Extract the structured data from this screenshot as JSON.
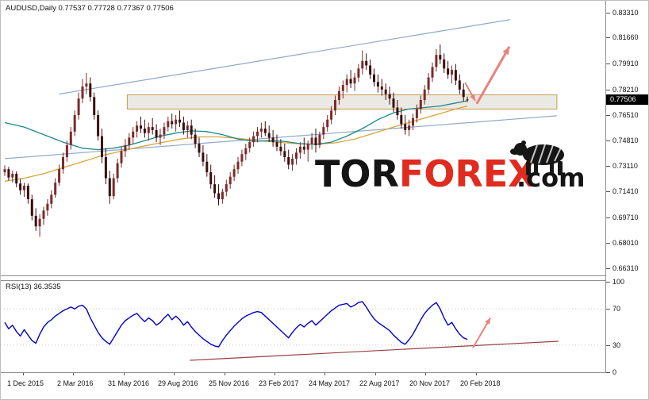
{
  "header": {
    "symbol_info": "AUDUSD,Daily  0.77537 0.77728 0.77367 0.77506"
  },
  "watermark": {
    "part1": "TOR",
    "part2": "FOREX",
    "part3": ".com",
    "color1": "#141414",
    "color2": "#e02b1f",
    "bear_color": "#161616"
  },
  "price_axis": {
    "labels": [
      "0.83310",
      "0.81660",
      "0.79910",
      "0.78210",
      "0.76510",
      "0.74810",
      "0.73110",
      "0.71410",
      "0.69710",
      "0.68010",
      "0.66310"
    ],
    "current_price": "0.77506"
  },
  "date_axis": {
    "labels": [
      "1 Dec 2015",
      "2 Mar 2016",
      "31 May 2016",
      "29 Aug 2016",
      "25 Nov 2016",
      "23 Feb 2017",
      "24 May 2017",
      "22 Aug 2017",
      "20 Nov 2017",
      "20 Feb 2018"
    ]
  },
  "rsi": {
    "label": "RSI(13) 36.3535",
    "axis_labels": [
      "100",
      "70",
      "30",
      "0"
    ],
    "levels": [
      70,
      30
    ],
    "level_color": "#c9c9c9",
    "line_color": "#0000cc",
    "trend_color": "#9a4040",
    "trendline": {
      "from": [
        47.6,
        13.2
      ],
      "to": [
        142.4,
        34.2
      ]
    },
    "arrow": {
      "from": [
        120.4,
        27
      ],
      "to": [
        124.9,
        60
      ]
    },
    "values": [
      55,
      48,
      52,
      45,
      40,
      47,
      41,
      35,
      32,
      42,
      50,
      55,
      58,
      62,
      65,
      68,
      70,
      72,
      70,
      73,
      74,
      70,
      60,
      52,
      44,
      38,
      34,
      31,
      38,
      45,
      52,
      57,
      60,
      63,
      65,
      60,
      56,
      60,
      57,
      52,
      55,
      60,
      64,
      58,
      62,
      58,
      52,
      56,
      50,
      45,
      41,
      37,
      34,
      31,
      29,
      28,
      35,
      41,
      46,
      51,
      55,
      59,
      62,
      64,
      66,
      67,
      66,
      62,
      58,
      54,
      50,
      46,
      42,
      38,
      44,
      49,
      53,
      50,
      54,
      57,
      52,
      56,
      60,
      64,
      68,
      71,
      74,
      75,
      76,
      72,
      74,
      77,
      78,
      72,
      65,
      59,
      55,
      52,
      49,
      46,
      41,
      37,
      33,
      31,
      36,
      42,
      50,
      58,
      65,
      70,
      74,
      77,
      70,
      60,
      52,
      55,
      48,
      42,
      38,
      36.35
    ]
  },
  "chart_data": {
    "type": "candlestick",
    "symbol": "AUDUSD",
    "timeframe": "Daily",
    "ohlc": {
      "open": "0.77537",
      "high": "0.77728",
      "low": "0.77367",
      "close": "0.77506"
    },
    "y_axis": {
      "min": 0.6631,
      "max": 0.8331
    },
    "candle_up_color": "#7d2a2a",
    "candle_down_color": "#3c0d0d",
    "arrow_color": "#e8837a",
    "channel_lines": {
      "color": "#8fa8c8",
      "upper": [
        [
          14,
          0.779
        ],
        [
          130,
          0.8285
        ]
      ],
      "lower": [
        [
          0,
          0.736
        ],
        [
          142,
          0.7645
        ]
      ]
    },
    "zone": {
      "from_idx": 31.5,
      "to_idx": 142,
      "price_top": 0.7785,
      "price_bottom": 0.769,
      "fill": "#eae9e3",
      "border": "#c99a4e"
    },
    "ma_teal": {
      "color": "#1b8a8a",
      "points": [
        [
          0,
          0.76
        ],
        [
          5,
          0.757
        ],
        [
          10,
          0.752
        ],
        [
          15,
          0.747
        ],
        [
          20,
          0.743
        ],
        [
          24,
          0.742
        ],
        [
          28,
          0.743
        ],
        [
          32,
          0.745
        ],
        [
          36,
          0.748
        ],
        [
          40,
          0.751
        ],
        [
          44,
          0.753
        ],
        [
          48,
          0.7545
        ],
        [
          52,
          0.754
        ],
        [
          56,
          0.752
        ],
        [
          60,
          0.749
        ],
        [
          64,
          0.7475
        ],
        [
          68,
          0.748
        ],
        [
          72,
          0.7475
        ],
        [
          76,
          0.746
        ],
        [
          80,
          0.7455
        ],
        [
          84,
          0.747
        ],
        [
          88,
          0.751
        ],
        [
          92,
          0.756
        ],
        [
          96,
          0.762
        ],
        [
          100,
          0.7665
        ],
        [
          104,
          0.769
        ],
        [
          108,
          0.77
        ],
        [
          112,
          0.771
        ],
        [
          116,
          0.773
        ],
        [
          119,
          0.7745
        ]
      ]
    },
    "ma_orange": {
      "color": "#d8a33c",
      "points": [
        [
          0,
          0.721
        ],
        [
          5,
          0.723
        ],
        [
          10,
          0.726
        ],
        [
          15,
          0.73
        ],
        [
          20,
          0.734
        ],
        [
          25,
          0.738
        ],
        [
          30,
          0.741
        ],
        [
          35,
          0.744
        ],
        [
          40,
          0.7465
        ],
        [
          45,
          0.749
        ],
        [
          50,
          0.7505
        ],
        [
          55,
          0.7505
        ],
        [
          60,
          0.7495
        ],
        [
          65,
          0.748
        ],
        [
          70,
          0.747
        ],
        [
          75,
          0.746
        ],
        [
          80,
          0.7455
        ],
        [
          85,
          0.7465
        ],
        [
          90,
          0.749
        ],
        [
          95,
          0.753
        ],
        [
          100,
          0.757
        ],
        [
          104,
          0.76
        ],
        [
          108,
          0.763
        ],
        [
          112,
          0.766
        ],
        [
          116,
          0.769
        ],
        [
          119,
          0.771
        ]
      ]
    },
    "arrows": {
      "down": {
        "from": [
          118.4,
          0.7866
        ],
        "to": [
          121,
          0.7745
        ]
      },
      "up": {
        "from": [
          121.4,
          0.7725
        ],
        "to": [
          129.8,
          0.8105
        ]
      }
    },
    "candles": [
      [
        0.727,
        0.7315,
        0.7245,
        0.729
      ],
      [
        0.729,
        0.7305,
        0.7215,
        0.7235
      ],
      [
        0.7235,
        0.728,
        0.72,
        0.726
      ],
      [
        0.726,
        0.7275,
        0.717,
        0.7195
      ],
      [
        0.7195,
        0.7225,
        0.712,
        0.715
      ],
      [
        0.715,
        0.72,
        0.7105,
        0.718
      ],
      [
        0.718,
        0.7195,
        0.706,
        0.709
      ],
      [
        0.709,
        0.712,
        0.695,
        0.698
      ],
      [
        0.698,
        0.703,
        0.688,
        0.691
      ],
      [
        0.691,
        0.699,
        0.684,
        0.696
      ],
      [
        0.696,
        0.704,
        0.692,
        0.7015
      ],
      [
        0.7015,
        0.709,
        0.698,
        0.706
      ],
      [
        0.706,
        0.715,
        0.703,
        0.712
      ],
      [
        0.712,
        0.723,
        0.71,
        0.72
      ],
      [
        0.72,
        0.732,
        0.718,
        0.729
      ],
      [
        0.729,
        0.74,
        0.726,
        0.737
      ],
      [
        0.737,
        0.748,
        0.734,
        0.745
      ],
      [
        0.745,
        0.757,
        0.742,
        0.754
      ],
      [
        0.754,
        0.768,
        0.751,
        0.765
      ],
      [
        0.765,
        0.78,
        0.762,
        0.776
      ],
      [
        0.776,
        0.789,
        0.773,
        0.784
      ],
      [
        0.784,
        0.793,
        0.779,
        0.786
      ],
      [
        0.786,
        0.79,
        0.774,
        0.777
      ],
      [
        0.777,
        0.78,
        0.762,
        0.765
      ],
      [
        0.765,
        0.768,
        0.748,
        0.751
      ],
      [
        0.751,
        0.756,
        0.733,
        0.737
      ],
      [
        0.737,
        0.743,
        0.719,
        0.723
      ],
      [
        0.723,
        0.728,
        0.706,
        0.711
      ],
      [
        0.711,
        0.726,
        0.709,
        0.723
      ],
      [
        0.723,
        0.736,
        0.72,
        0.733
      ],
      [
        0.733,
        0.744,
        0.73,
        0.741
      ],
      [
        0.741,
        0.749,
        0.737,
        0.745
      ],
      [
        0.745,
        0.753,
        0.742,
        0.75
      ],
      [
        0.75,
        0.757,
        0.746,
        0.754
      ],
      [
        0.754,
        0.761,
        0.75,
        0.758
      ],
      [
        0.758,
        0.764,
        0.753,
        0.756
      ],
      [
        0.756,
        0.762,
        0.75,
        0.753
      ],
      [
        0.753,
        0.76,
        0.748,
        0.757
      ],
      [
        0.757,
        0.763,
        0.752,
        0.755
      ],
      [
        0.755,
        0.759,
        0.747,
        0.75
      ],
      [
        0.75,
        0.756,
        0.745,
        0.752
      ],
      [
        0.752,
        0.76,
        0.749,
        0.757
      ],
      [
        0.757,
        0.764,
        0.754,
        0.761
      ],
      [
        0.761,
        0.766,
        0.756,
        0.759
      ],
      [
        0.759,
        0.765,
        0.754,
        0.762
      ],
      [
        0.762,
        0.768,
        0.757,
        0.76
      ],
      [
        0.76,
        0.764,
        0.752,
        0.755
      ],
      [
        0.755,
        0.761,
        0.75,
        0.758
      ],
      [
        0.758,
        0.762,
        0.749,
        0.752
      ],
      [
        0.752,
        0.756,
        0.743,
        0.746
      ],
      [
        0.746,
        0.75,
        0.737,
        0.74
      ],
      [
        0.74,
        0.745,
        0.731,
        0.734
      ],
      [
        0.734,
        0.739,
        0.724,
        0.727
      ],
      [
        0.727,
        0.732,
        0.716,
        0.719
      ],
      [
        0.719,
        0.725,
        0.71,
        0.713
      ],
      [
        0.713,
        0.719,
        0.705,
        0.709
      ],
      [
        0.709,
        0.716,
        0.706,
        0.714
      ],
      [
        0.714,
        0.722,
        0.711,
        0.719
      ],
      [
        0.719,
        0.727,
        0.716,
        0.724
      ],
      [
        0.724,
        0.732,
        0.721,
        0.729
      ],
      [
        0.729,
        0.737,
        0.726,
        0.734
      ],
      [
        0.734,
        0.742,
        0.731,
        0.739
      ],
      [
        0.739,
        0.746,
        0.735,
        0.743
      ],
      [
        0.743,
        0.75,
        0.74,
        0.747
      ],
      [
        0.747,
        0.754,
        0.744,
        0.751
      ],
      [
        0.751,
        0.757,
        0.747,
        0.754
      ],
      [
        0.754,
        0.76,
        0.75,
        0.756
      ],
      [
        0.756,
        0.761,
        0.751,
        0.753
      ],
      [
        0.753,
        0.758,
        0.747,
        0.75
      ],
      [
        0.75,
        0.755,
        0.744,
        0.747
      ],
      [
        0.747,
        0.752,
        0.741,
        0.744
      ],
      [
        0.744,
        0.749,
        0.738,
        0.741
      ],
      [
        0.741,
        0.746,
        0.734,
        0.737
      ],
      [
        0.737,
        0.742,
        0.729,
        0.732
      ],
      [
        0.732,
        0.739,
        0.728,
        0.736
      ],
      [
        0.736,
        0.743,
        0.732,
        0.74
      ],
      [
        0.74,
        0.747,
        0.736,
        0.744
      ],
      [
        0.744,
        0.75,
        0.739,
        0.742
      ],
      [
        0.742,
        0.748,
        0.734,
        0.746
      ],
      [
        0.746,
        0.753,
        0.742,
        0.75
      ],
      [
        0.75,
        0.756,
        0.74,
        0.745
      ],
      [
        0.745,
        0.754,
        0.743,
        0.752
      ],
      [
        0.752,
        0.76,
        0.749,
        0.757
      ],
      [
        0.757,
        0.765,
        0.754,
        0.762
      ],
      [
        0.762,
        0.771,
        0.759,
        0.768
      ],
      [
        0.768,
        0.778,
        0.765,
        0.775
      ],
      [
        0.775,
        0.784,
        0.772,
        0.781
      ],
      [
        0.781,
        0.788,
        0.776,
        0.785
      ],
      [
        0.785,
        0.792,
        0.78,
        0.789
      ],
      [
        0.789,
        0.795,
        0.783,
        0.786
      ],
      [
        0.786,
        0.793,
        0.781,
        0.79
      ],
      [
        0.79,
        0.799,
        0.787,
        0.796
      ],
      [
        0.796,
        0.808,
        0.792,
        0.801
      ],
      [
        0.801,
        0.806,
        0.795,
        0.798
      ],
      [
        0.798,
        0.802,
        0.789,
        0.792
      ],
      [
        0.792,
        0.796,
        0.784,
        0.787
      ],
      [
        0.787,
        0.792,
        0.78,
        0.784
      ],
      [
        0.784,
        0.789,
        0.778,
        0.782
      ],
      [
        0.782,
        0.786,
        0.775,
        0.779
      ],
      [
        0.779,
        0.784,
        0.772,
        0.776
      ],
      [
        0.776,
        0.78,
        0.767,
        0.77
      ],
      [
        0.77,
        0.775,
        0.762,
        0.765
      ],
      [
        0.765,
        0.77,
        0.756,
        0.759
      ],
      [
        0.759,
        0.765,
        0.752,
        0.755
      ],
      [
        0.755,
        0.762,
        0.751,
        0.758
      ],
      [
        0.758,
        0.766,
        0.755,
        0.763
      ],
      [
        0.763,
        0.772,
        0.76,
        0.769
      ],
      [
        0.769,
        0.778,
        0.766,
        0.775
      ],
      [
        0.775,
        0.785,
        0.772,
        0.782
      ],
      [
        0.782,
        0.793,
        0.779,
        0.79
      ],
      [
        0.79,
        0.8,
        0.787,
        0.797
      ],
      [
        0.797,
        0.809,
        0.794,
        0.805
      ],
      [
        0.805,
        0.812,
        0.799,
        0.802
      ],
      [
        0.802,
        0.806,
        0.793,
        0.796
      ],
      [
        0.796,
        0.801,
        0.789,
        0.792
      ],
      [
        0.792,
        0.798,
        0.786,
        0.795
      ],
      [
        0.795,
        0.799,
        0.785,
        0.788
      ],
      [
        0.788,
        0.792,
        0.779,
        0.782
      ],
      [
        0.782,
        0.786,
        0.774,
        0.777
      ],
      [
        0.7754,
        0.7773,
        0.7737,
        0.7751
      ]
    ]
  }
}
